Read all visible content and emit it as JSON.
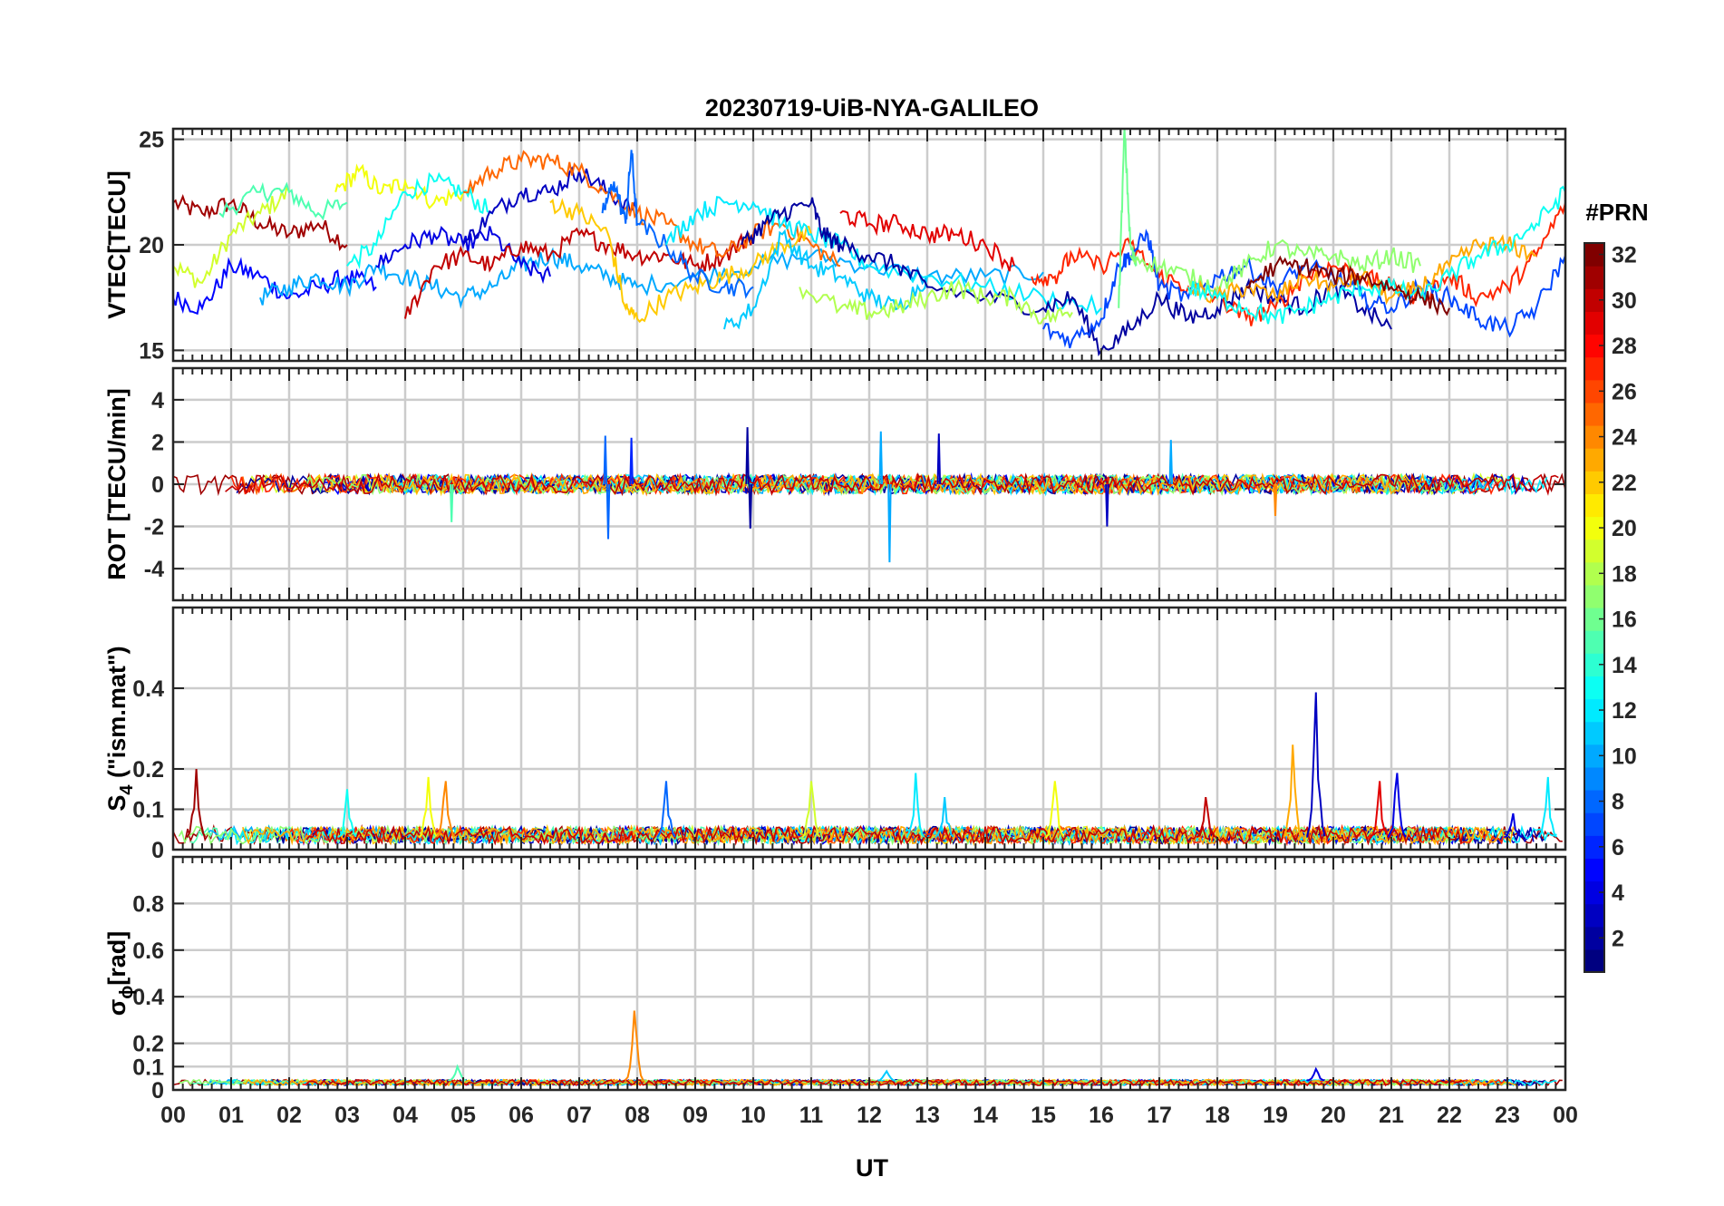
{
  "title": "20230719-UiB-NYA-GALILEO",
  "chart_data": {
    "type": "line",
    "title": "20230719-UiB-NYA-GALILEO",
    "xlabel": "UT",
    "x_ticks": [
      "00",
      "01",
      "02",
      "03",
      "04",
      "05",
      "06",
      "07",
      "08",
      "09",
      "10",
      "11",
      "12",
      "13",
      "14",
      "15",
      "16",
      "17",
      "18",
      "19",
      "20",
      "21",
      "22",
      "23",
      "00"
    ],
    "xlim_hours": [
      0,
      24
    ],
    "grid": true,
    "colorbar": {
      "label": "#PRN",
      "ticks": [
        "2",
        "4",
        "6",
        "8",
        "10",
        "12",
        "14",
        "16",
        "18",
        "20",
        "22",
        "24",
        "26",
        "28",
        "30",
        "32"
      ],
      "range": [
        1,
        32
      ],
      "colormap": "jet"
    },
    "panels": [
      {
        "id": "vtec",
        "ylabel": "VTEC[TECU]",
        "ylim": [
          14.5,
          25.5
        ],
        "yticks": [
          "15",
          "20",
          "25"
        ],
        "ytick_values": [
          15,
          20,
          25
        ],
        "series": [
          {
            "prn": 31,
            "x": [
              0,
              0.5,
              1,
              1.5,
              2,
              2.5,
              3
            ],
            "y": [
              22,
              21.5,
              22,
              21,
              20.5,
              21,
              20
            ]
          },
          {
            "prn": 19,
            "x": [
              0,
              0.5,
              1,
              1.5,
              2
            ],
            "y": [
              19,
              18.2,
              20.5,
              21.5,
              22.5
            ]
          },
          {
            "prn": 15,
            "x": [
              0.8,
              1.5,
              2,
              2.5,
              3
            ],
            "y": [
              21.5,
              22.5,
              22.5,
              21.5,
              22
            ]
          },
          {
            "prn": 5,
            "x": [
              0,
              0.5,
              1,
              1.5,
              2,
              2.5,
              3,
              3.5
            ],
            "y": [
              17.5,
              17,
              19,
              18.5,
              17.5,
              18,
              18.5,
              18
            ]
          },
          {
            "prn": 20,
            "x": [
              2.8,
              3.2,
              3.6,
              4,
              4.5,
              5
            ],
            "y": [
              22.5,
              23.5,
              22.5,
              23,
              22,
              22.5
            ]
          },
          {
            "prn": 13,
            "x": [
              3,
              3.5,
              4,
              4.5,
              5,
              5.5
            ],
            "y": [
              19,
              20,
              22.5,
              23,
              22.5,
              21.5
            ]
          },
          {
            "prn": 10,
            "x": [
              1.5,
              2,
              2.5,
              3,
              3.5,
              4,
              4.5,
              5,
              5.5,
              6,
              6.5,
              7,
              7.5,
              8,
              9,
              10,
              11,
              12,
              13,
              14,
              15
            ],
            "y": [
              17.5,
              18,
              18.5,
              18,
              19,
              18.5,
              18,
              17.5,
              18,
              19,
              19.5,
              19,
              18.5,
              18,
              18.5,
              19,
              19.5,
              19,
              18.5,
              18.5,
              18.7
            ]
          },
          {
            "prn": 4,
            "x": [
              3.5,
              4,
              4.5,
              5,
              5.5,
              6,
              6.5
            ],
            "y": [
              19,
              20,
              20.5,
              20,
              20.5,
              19,
              18.5
            ]
          },
          {
            "prn": 30,
            "x": [
              4,
              4.5,
              5,
              5.5,
              6,
              6.5,
              7,
              7.5,
              8,
              8.5,
              9,
              9.5,
              10
            ],
            "y": [
              16.5,
              19,
              19.5,
              19,
              20,
              19.5,
              20.5,
              20,
              19.5,
              19.5,
              19,
              19.5,
              20.5
            ]
          },
          {
            "prn": 3,
            "x": [
              5,
              5.5,
              6,
              6.5,
              7,
              7.5,
              8
            ],
            "y": [
              20,
              21.5,
              22.5,
              22.5,
              23.5,
              22.5,
              21.5
            ]
          },
          {
            "prn": 25,
            "x": [
              5,
              5.5,
              6,
              6.5,
              7,
              7.5,
              8,
              8.5,
              9,
              9.5,
              10,
              10.5,
              11,
              11.5
            ],
            "y": [
              22.5,
              23.5,
              24,
              24,
              23.5,
              22.5,
              21.5,
              21,
              20,
              19.5,
              20.5,
              21,
              20,
              19
            ]
          },
          {
            "prn": 22,
            "x": [
              6.5,
              7,
              7.5,
              7.8,
              8,
              8.5,
              9,
              9.5,
              10,
              10.5,
              11
            ],
            "y": [
              22,
              21.5,
              20.5,
              17,
              16.5,
              17.5,
              18,
              18.5,
              19,
              20,
              20.5
            ]
          },
          {
            "prn": 8,
            "x": [
              7.4,
              7.6,
              7.8,
              7.9,
              8,
              8.5,
              9,
              9.5,
              10
            ],
            "y": [
              21.5,
              23,
              21,
              24.5,
              21,
              20,
              18.5,
              18,
              18
            ]
          },
          {
            "prn": 11,
            "x": [
              9.5,
              10,
              10.5,
              11,
              11.5,
              12,
              12.5,
              13
            ],
            "y": [
              16,
              17,
              20.5,
              19,
              18.5,
              17.5,
              17,
              18.5
            ]
          },
          {
            "prn": 12,
            "x": [
              8.5,
              9,
              9.5,
              10,
              10.5,
              11,
              11.5,
              12,
              13,
              14,
              15,
              16
            ],
            "y": [
              20,
              21.5,
              22,
              22,
              21,
              20.5,
              20,
              19,
              18.5,
              18,
              17.5,
              17
            ]
          },
          {
            "prn": 2,
            "x": [
              9.8,
              10.2,
              10.5,
              11,
              11.2,
              11.5,
              12,
              12.5,
              13,
              14,
              15,
              15.5,
              16,
              16.5,
              17,
              17.5,
              18,
              18.5,
              19,
              19.5,
              20,
              20.5,
              21
            ],
            "y": [
              20,
              21,
              21.5,
              22,
              20.5,
              20,
              19.5,
              19,
              18,
              17.5,
              17,
              17.5,
              15,
              16,
              17.5,
              16.5,
              17,
              18,
              17.5,
              17,
              18,
              17,
              16
            ]
          },
          {
            "prn": 29,
            "x": [
              11.5,
              12,
              12.5,
              13,
              13.5,
              14,
              14.5
            ],
            "y": [
              21.5,
              21,
              21,
              20.5,
              20.5,
              20,
              19
            ]
          },
          {
            "prn": 18,
            "x": [
              10.8,
              11.5,
              12,
              12.5,
              13,
              13.5,
              14,
              14.5,
              15,
              15.5
            ],
            "y": [
              18,
              17,
              16.8,
              17,
              17.5,
              18,
              17.5,
              17.5,
              16.5,
              16.8
            ]
          },
          {
            "prn": 27,
            "x": [
              14.8,
              15.2,
              15.5,
              16,
              16.5,
              17,
              17.5,
              18,
              18.5,
              19,
              19.5,
              20,
              20.5,
              21,
              21.5,
              22,
              22.5,
              23,
              23.5,
              24
            ],
            "y": [
              18.5,
              18.5,
              19.5,
              19,
              20,
              18.5,
              18,
              17.5,
              16.5,
              17,
              18.5,
              19,
              18.5,
              18,
              17.5,
              18.5,
              17.5,
              18,
              19.5,
              22
            ]
          },
          {
            "prn": 7,
            "x": [
              15,
              15.5,
              16,
              16.3,
              16.5,
              16.8,
              17,
              17.5,
              18,
              18.5,
              19,
              19.5,
              20,
              20.5,
              21,
              21.5,
              22,
              22.5,
              23,
              23.5,
              24
            ],
            "y": [
              16,
              15.5,
              16.5,
              19,
              19.5,
              20.5,
              18,
              17.5,
              18.5,
              19,
              18,
              19,
              18.5,
              17.5,
              17,
              18,
              17.5,
              16.5,
              16,
              17,
              19.5
            ]
          },
          {
            "prn": 16,
            "x": [
              16.3,
              16.4,
              16.5,
              16.6
            ],
            "y": [
              17,
              25.5,
              20,
              19
            ]
          },
          {
            "prn": 17,
            "x": [
              16.5,
              17,
              17.5,
              18,
              18.5,
              19,
              19.5,
              20,
              20.5,
              21,
              21.5
            ],
            "y": [
              19.5,
              19,
              18.5,
              18,
              19,
              20,
              19.5,
              19.5,
              19,
              19.5,
              19
            ]
          },
          {
            "prn": 23,
            "x": [
              17.5,
              18,
              18.5,
              19,
              19.5,
              20,
              20.5,
              21,
              21.5,
              22,
              22.5,
              23,
              23.5
            ],
            "y": [
              18,
              17.5,
              18,
              17.5,
              18.5,
              18,
              18.5,
              17.5,
              18,
              19,
              20,
              20,
              19.5
            ]
          },
          {
            "prn": 13,
            "x": [
              17.5,
              18,
              18.5,
              19,
              19.5,
              20,
              20.5,
              21,
              21.5,
              22,
              22.5,
              23,
              23.5,
              24
            ],
            "y": [
              18,
              17.5,
              17,
              16.5,
              17,
              17.5,
              18,
              18,
              17.5,
              18.5,
              19.5,
              20,
              21,
              22.5
            ]
          },
          {
            "prn": 32,
            "x": [
              18.5,
              19,
              19.5,
              20,
              20.5,
              21,
              21.5,
              22
            ],
            "y": [
              18,
              19,
              19,
              18.5,
              18.5,
              18,
              17.5,
              17
            ]
          }
        ]
      },
      {
        "id": "rot",
        "ylabel": "ROT [TECU/min]",
        "ylim": [
          -5.5,
          5.5
        ],
        "yticks": [
          "-4",
          "-2",
          "0",
          "2",
          "4"
        ],
        "ytick_values": [
          -4,
          -2,
          0,
          2,
          4
        ],
        "noise_band": 0.45,
        "spikes": [
          {
            "x": 7.45,
            "y": 2.3,
            "prn": 8
          },
          {
            "x": 7.5,
            "y": -2.6,
            "prn": 8
          },
          {
            "x": 7.9,
            "y": 2.2,
            "prn": 6
          },
          {
            "x": 9.9,
            "y": 2.7,
            "prn": 2
          },
          {
            "x": 9.95,
            "y": -2.1,
            "prn": 2
          },
          {
            "x": 12.2,
            "y": 2.5,
            "prn": 10
          },
          {
            "x": 12.35,
            "y": -3.7,
            "prn": 10
          },
          {
            "x": 13.2,
            "y": 2.4,
            "prn": 3
          },
          {
            "x": 17.2,
            "y": 2.1,
            "prn": 10
          },
          {
            "x": 19,
            "y": -1.5,
            "prn": 24
          },
          {
            "x": 16.1,
            "y": -2.0,
            "prn": 3
          },
          {
            "x": 4.8,
            "y": -1.8,
            "prn": 15
          }
        ]
      },
      {
        "id": "s4",
        "ylabel_main": "S",
        "ylabel_sub": "4",
        "ylabel_tail": " (\"ism.mat\")",
        "ylim": [
          0,
          0.6
        ],
        "yticks": [
          "0",
          "0.1",
          "0.2",
          "0.4"
        ],
        "ytick_values": [
          0,
          0.1,
          0.2,
          0.4
        ],
        "base_level": 0.03,
        "spikes": [
          {
            "x": 0.4,
            "y": 0.2,
            "prn": 31
          },
          {
            "x": 3,
            "y": 0.15,
            "prn": 13
          },
          {
            "x": 4.4,
            "y": 0.18,
            "prn": 20
          },
          {
            "x": 4.7,
            "y": 0.17,
            "prn": 24
          },
          {
            "x": 8.5,
            "y": 0.17,
            "prn": 8
          },
          {
            "x": 11,
            "y": 0.17,
            "prn": 19
          },
          {
            "x": 12.8,
            "y": 0.19,
            "prn": 12
          },
          {
            "x": 13.3,
            "y": 0.13,
            "prn": 11
          },
          {
            "x": 15.2,
            "y": 0.17,
            "prn": 20
          },
          {
            "x": 17.8,
            "y": 0.13,
            "prn": 30
          },
          {
            "x": 19.3,
            "y": 0.26,
            "prn": 23
          },
          {
            "x": 19.7,
            "y": 0.39,
            "prn": 3
          },
          {
            "x": 20.8,
            "y": 0.17,
            "prn": 29
          },
          {
            "x": 21.1,
            "y": 0.19,
            "prn": 4
          },
          {
            "x": 23.7,
            "y": 0.18,
            "prn": 12
          },
          {
            "x": 23.1,
            "y": 0.09,
            "prn": 4
          }
        ]
      },
      {
        "id": "sigma",
        "ylabel_main": "σ",
        "ylabel_sub": "ϕ",
        "ylabel_tail": "[rad]",
        "ylim": [
          0,
          1
        ],
        "yticks": [
          "0",
          "0.1",
          "0.2",
          "0.4",
          "0.6",
          "0.8"
        ],
        "ytick_values": [
          0,
          0.1,
          0.2,
          0.4,
          0.6,
          0.8
        ],
        "base_level": 0.04,
        "spikes": [
          {
            "x": 7.95,
            "y": 0.34,
            "prn": 24
          },
          {
            "x": 4.9,
            "y": 0.1,
            "prn": 15
          },
          {
            "x": 12.3,
            "y": 0.08,
            "prn": 11
          },
          {
            "x": 19.7,
            "y": 0.09,
            "prn": 4
          }
        ]
      }
    ]
  }
}
